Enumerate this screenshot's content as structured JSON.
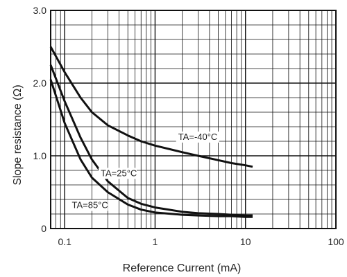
{
  "chart_data": {
    "type": "line",
    "xlabel": "Reference Current (mA)",
    "ylabel": "Slope resistance  (Ω)",
    "xscale": "log",
    "xlim": [
      0.07,
      100
    ],
    "ylim": [
      0,
      3.0
    ],
    "grid": true,
    "legend": "inline",
    "x_ticks": [
      {
        "value": 0.1,
        "label": "0.1"
      },
      {
        "value": 1,
        "label": "1"
      },
      {
        "value": 10,
        "label": "10"
      },
      {
        "value": 100,
        "label": "100"
      }
    ],
    "y_ticks": [
      {
        "value": 0,
        "label": "0"
      },
      {
        "value": 1.0,
        "label": "1.0"
      },
      {
        "value": 2.0,
        "label": "2.0"
      },
      {
        "value": 3.0,
        "label": "3.0"
      }
    ],
    "series": [
      {
        "name": "TA=-40°C",
        "x": [
          0.07,
          0.1,
          0.15,
          0.2,
          0.3,
          0.5,
          0.7,
          1,
          2,
          3,
          5,
          7,
          10,
          12
        ],
        "y": [
          2.5,
          2.15,
          1.8,
          1.6,
          1.42,
          1.28,
          1.2,
          1.14,
          1.05,
          1.0,
          0.94,
          0.9,
          0.87,
          0.85
        ]
      },
      {
        "name": "TA=25°C",
        "x": [
          0.07,
          0.1,
          0.15,
          0.2,
          0.3,
          0.5,
          0.7,
          1,
          2,
          3,
          5,
          7,
          10,
          12
        ],
        "y": [
          2.25,
          1.75,
          1.25,
          0.95,
          0.65,
          0.42,
          0.34,
          0.29,
          0.23,
          0.21,
          0.2,
          0.19,
          0.18,
          0.18
        ]
      },
      {
        "name": "TA=85°C",
        "x": [
          0.07,
          0.1,
          0.15,
          0.2,
          0.3,
          0.5,
          0.7,
          1,
          2,
          3,
          5,
          7,
          10,
          12
        ],
        "y": [
          2.05,
          1.45,
          0.95,
          0.7,
          0.5,
          0.33,
          0.26,
          0.22,
          0.19,
          0.18,
          0.17,
          0.17,
          0.16,
          0.16
        ]
      }
    ]
  }
}
